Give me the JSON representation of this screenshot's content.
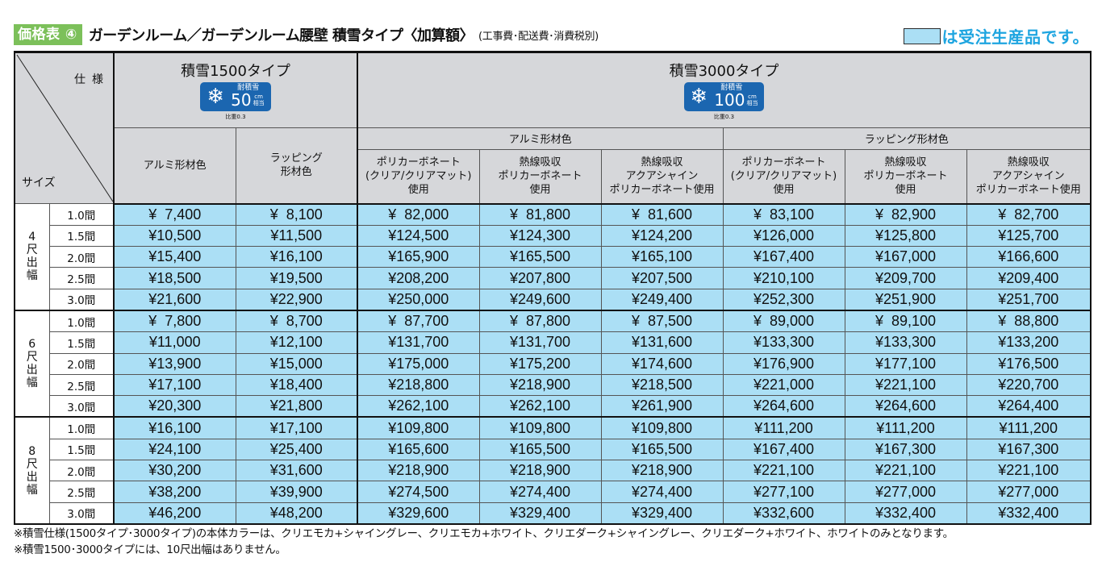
{
  "header": {
    "badge": "価格表 ④",
    "title": "ガーデンルーム／ガーデンルーム腰壁 積雪タイプ〈加算額〉",
    "note": "(工事費･配送費･消費税別)",
    "legend_text": "は受注生産品です。",
    "legend_color": "#abdff5"
  },
  "table": {
    "corner_spec": "仕様",
    "corner_size": "サイズ",
    "types": [
      {
        "title": "積雪1500タイプ",
        "badge_label": "耐積雪",
        "badge_value": "50",
        "badge_unit_top": "cm",
        "badge_unit_bottom": "相当",
        "ratio": "比重0.3"
      },
      {
        "title": "積雪3000タイプ",
        "badge_label": "耐積雪",
        "badge_value": "100",
        "badge_unit_top": "cm",
        "badge_unit_bottom": "相当",
        "ratio": "比重0.3"
      }
    ],
    "subgroups": [
      "アルミ形材色",
      "ラッピング形材色"
    ],
    "columns": [
      [
        "アルミ形材色"
      ],
      [
        "ラッピング",
        "形材色"
      ],
      [
        "ポリカーボネート",
        "(クリア/クリアマット)",
        "使用"
      ],
      [
        "熱線吸収",
        "ポリカーボネート",
        "使用"
      ],
      [
        "熱線吸収",
        "アクアシャイン",
        "ポリカーボネート使用"
      ],
      [
        "ポリカーボネート",
        "(クリア/クリアマット)",
        "使用"
      ],
      [
        "熱線吸収",
        "ポリカーボネート",
        "使用"
      ],
      [
        "熱線吸収",
        "アクアシャイン",
        "ポリカーボネート使用"
      ]
    ],
    "groups": [
      {
        "label": [
          "4",
          "尺",
          "出",
          "幅"
        ],
        "rows": [
          {
            "size": "1.0間",
            "values": [
              "¥  7,400",
              "¥  8,100",
              "¥  82,000",
              "¥  81,800",
              "¥  81,600",
              "¥  83,100",
              "¥  82,900",
              "¥  82,700"
            ]
          },
          {
            "size": "1.5間",
            "values": [
              "¥10,500",
              "¥11,500",
              "¥124,500",
              "¥124,300",
              "¥124,200",
              "¥126,000",
              "¥125,800",
              "¥125,700"
            ]
          },
          {
            "size": "2.0間",
            "values": [
              "¥15,400",
              "¥16,100",
              "¥165,900",
              "¥165,500",
              "¥165,100",
              "¥167,400",
              "¥167,000",
              "¥166,600"
            ]
          },
          {
            "size": "2.5間",
            "values": [
              "¥18,500",
              "¥19,500",
              "¥208,200",
              "¥207,800",
              "¥207,500",
              "¥210,100",
              "¥209,700",
              "¥209,400"
            ]
          },
          {
            "size": "3.0間",
            "values": [
              "¥21,600",
              "¥22,900",
              "¥250,000",
              "¥249,600",
              "¥249,400",
              "¥252,300",
              "¥251,900",
              "¥251,700"
            ]
          }
        ]
      },
      {
        "label": [
          "6",
          "尺",
          "出",
          "幅"
        ],
        "rows": [
          {
            "size": "1.0間",
            "values": [
              "¥  7,800",
              "¥  8,700",
              "¥  87,700",
              "¥  87,800",
              "¥  87,500",
              "¥  89,000",
              "¥  89,100",
              "¥  88,800"
            ]
          },
          {
            "size": "1.5間",
            "values": [
              "¥11,000",
              "¥12,100",
              "¥131,700",
              "¥131,700",
              "¥131,600",
              "¥133,300",
              "¥133,300",
              "¥133,200"
            ]
          },
          {
            "size": "2.0間",
            "values": [
              "¥13,900",
              "¥15,000",
              "¥175,000",
              "¥175,200",
              "¥174,600",
              "¥176,900",
              "¥177,100",
              "¥176,500"
            ]
          },
          {
            "size": "2.5間",
            "values": [
              "¥17,100",
              "¥18,400",
              "¥218,800",
              "¥218,900",
              "¥218,500",
              "¥221,000",
              "¥221,100",
              "¥220,700"
            ]
          },
          {
            "size": "3.0間",
            "values": [
              "¥20,300",
              "¥21,800",
              "¥262,100",
              "¥262,100",
              "¥261,900",
              "¥264,600",
              "¥264,600",
              "¥264,400"
            ]
          }
        ]
      },
      {
        "label": [
          "8",
          "尺",
          "出",
          "幅"
        ],
        "rows": [
          {
            "size": "1.0間",
            "values": [
              "¥16,100",
              "¥17,100",
              "¥109,800",
              "¥109,800",
              "¥109,800",
              "¥111,200",
              "¥111,200",
              "¥111,200"
            ]
          },
          {
            "size": "1.5間",
            "values": [
              "¥24,100",
              "¥25,400",
              "¥165,600",
              "¥165,500",
              "¥165,500",
              "¥167,400",
              "¥167,300",
              "¥167,300"
            ]
          },
          {
            "size": "2.0間",
            "values": [
              "¥30,200",
              "¥31,600",
              "¥218,900",
              "¥218,900",
              "¥218,900",
              "¥221,100",
              "¥221,100",
              "¥221,100"
            ]
          },
          {
            "size": "2.5間",
            "values": [
              "¥38,200",
              "¥39,900",
              "¥274,500",
              "¥274,400",
              "¥274,400",
              "¥277,100",
              "¥277,000",
              "¥277,000"
            ]
          },
          {
            "size": "3.0間",
            "values": [
              "¥46,200",
              "¥48,200",
              "¥329,600",
              "¥329,400",
              "¥329,400",
              "¥332,600",
              "¥332,400",
              "¥332,400"
            ]
          }
        ]
      }
    ]
  },
  "footnotes": [
    "※積雪仕様(1500タイプ･3000タイプ)の本体カラーは、クリエモカ+シャイングレー、クリエモカ+ホワイト、クリエダーク+シャイングレー、クリエダーク+ホワイト、ホワイトのみとなります。",
    "※積雪1500･3000タイプには、10尺出幅はありません。"
  ]
}
